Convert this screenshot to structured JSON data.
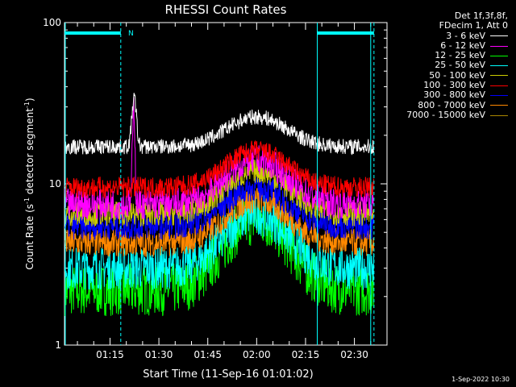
{
  "chart_data": {
    "type": "line",
    "title": "RHESSI Count Rates",
    "xlabel": "Start Time (11-Sep-16 01:01:02)",
    "ylabel": "Count Rate (s",
    "ylabel_sup1": "-1",
    "ylabel_mid": " detector segment",
    "ylabel_sup2": "-1",
    "ylabel_end": ")",
    "yscale": "log",
    "ylim": [
      1,
      100
    ],
    "y_ticks": [
      {
        "value": 1,
        "label": "1"
      },
      {
        "value": 10,
        "label": "10"
      },
      {
        "value": 100,
        "label": "100"
      }
    ],
    "xlim_minutes": [
      61.03,
      160.0
    ],
    "x_ticks": [
      {
        "minutes": 75,
        "label": "01:15"
      },
      {
        "minutes": 90,
        "label": "01:30"
      },
      {
        "minutes": 105,
        "label": "01:45"
      },
      {
        "minutes": 120,
        "label": "02:00"
      },
      {
        "minutes": 135,
        "label": "02:15"
      },
      {
        "minutes": 150,
        "label": "02:30"
      }
    ],
    "annotation_n": "N",
    "night_intervals_minutes": [
      [
        61.03,
        78.3
      ],
      [
        138.6,
        156.0
      ]
    ],
    "saa_lines_minutes": [
      78.3,
      138.6,
      155.0,
      156.0
    ],
    "series": [
      {
        "name": "3 - 6 keV",
        "color": "#ffffff",
        "base": 17,
        "peak": 26,
        "noise": 0.05
      },
      {
        "name": "6 - 12 keV",
        "color": "#ff00ff",
        "base": 7.5,
        "peak": 14,
        "noise": 0.1,
        "spike": 36
      },
      {
        "name": "12 - 25 keV",
        "color": "#00ff00",
        "base": 2.2,
        "peak": 6.0,
        "noise": 0.17
      },
      {
        "name": "25 - 50 keV",
        "color": "#00ffff",
        "base": 3.0,
        "peak": 6.5,
        "noise": 0.14
      },
      {
        "name": "50 - 100 keV",
        "color": "#cccc00",
        "base": 6.5,
        "peak": 12,
        "noise": 0.08
      },
      {
        "name": "100 - 300 keV",
        "color": "#ff0000",
        "base": 9.5,
        "peak": 16,
        "noise": 0.07
      },
      {
        "name": "300 - 800 keV",
        "color": "#0000ff",
        "base": 5.5,
        "peak": 9.5,
        "noise": 0.09
      },
      {
        "name": "800 - 7000 keV",
        "color": "#ff8800",
        "base": 4.3,
        "peak": 8.0,
        "noise": 0.09
      },
      {
        "name": "7000 - 15000 keV",
        "color": "#aa8800",
        "base": 0,
        "peak": 0,
        "noise": 0
      }
    ]
  },
  "legend": {
    "header_line1": "Det 1f,3f,8f,",
    "header_line2": "FDecim 1, Att 0"
  },
  "footer": {
    "date": "1-Sep-2022 10:30"
  }
}
